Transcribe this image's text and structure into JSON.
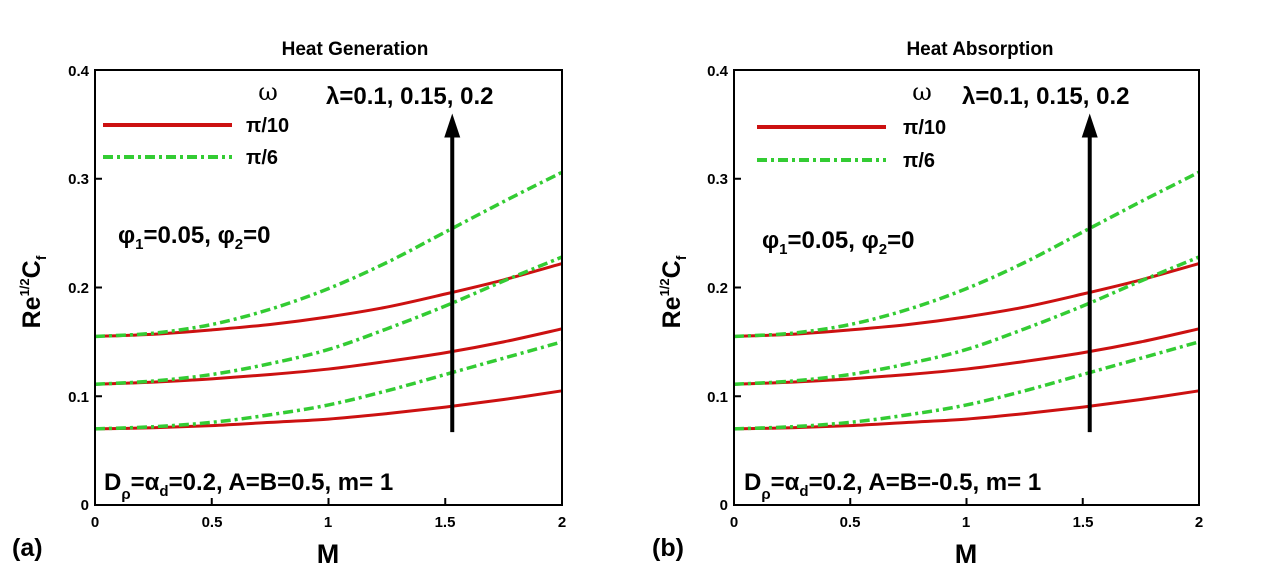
{
  "colors": {
    "solid": "#cc1111",
    "dashdot": "#33cc33",
    "axis": "#000000",
    "arrow": "#000000"
  },
  "chart_data": [
    {
      "type": "line",
      "panel": "(a)",
      "title": "Heat Generation",
      "xlabel": "M",
      "ylabel": {
        "base": "Re",
        "sup": "1/2",
        "main": "C",
        "sub": "f"
      },
      "xlim": [
        0,
        2
      ],
      "ylim": [
        0,
        0.4
      ],
      "xticks": [
        "0",
        "0.5",
        "1",
        "1.5",
        "2"
      ],
      "yticks": [
        "0",
        "0.1",
        "0.2",
        "0.3",
        "0.4"
      ],
      "legend": {
        "header": "ω",
        "entries": [
          {
            "label": "π/10",
            "style": "solid"
          },
          {
            "label": "π/6",
            "style": "dashdot"
          }
        ]
      },
      "annotations": {
        "lambda": "λ=0.1, 0.15, 0.2",
        "phi_p1": "φ",
        "phi_s1": "1",
        "phi_v1": "=0.05, ",
        "phi_p2": "φ",
        "phi_s2": "2",
        "phi_v2": "=0",
        "params_a": "D",
        "params_a_sub": "ρ",
        "params_b": "=",
        "params_c": "α",
        "params_c_sub": "d",
        "params_d": "=0.2, A=B=0.5, m= 1"
      },
      "arrow": {
        "x": 1.53,
        "y_from": 0.067,
        "y_to": 0.36
      },
      "series": [
        {
          "name": "π/10, λ=0.1",
          "style": "solid",
          "x": [
            0,
            0.25,
            0.5,
            0.75,
            1,
            1.25,
            1.5,
            1.75,
            2
          ],
          "y": [
            0.07,
            0.071,
            0.073,
            0.076,
            0.079,
            0.084,
            0.09,
            0.097,
            0.105
          ]
        },
        {
          "name": "π/10, λ=0.15",
          "style": "solid",
          "x": [
            0,
            0.25,
            0.5,
            0.75,
            1,
            1.25,
            1.5,
            1.75,
            2
          ],
          "y": [
            0.111,
            0.113,
            0.116,
            0.12,
            0.125,
            0.132,
            0.14,
            0.15,
            0.162
          ]
        },
        {
          "name": "π/10, λ=0.2",
          "style": "solid",
          "x": [
            0,
            0.25,
            0.5,
            0.75,
            1,
            1.25,
            1.5,
            1.75,
            2
          ],
          "y": [
            0.155,
            0.157,
            0.161,
            0.166,
            0.173,
            0.182,
            0.194,
            0.207,
            0.222
          ]
        },
        {
          "name": "π/6, λ=0.1",
          "style": "dashdot",
          "x": [
            0,
            0.25,
            0.5,
            0.75,
            1,
            1.25,
            1.5,
            1.75,
            2
          ],
          "y": [
            0.07,
            0.072,
            0.076,
            0.083,
            0.092,
            0.105,
            0.12,
            0.135,
            0.15
          ]
        },
        {
          "name": "π/6, λ=0.15",
          "style": "dashdot",
          "x": [
            0,
            0.25,
            0.5,
            0.75,
            1,
            1.25,
            1.5,
            1.75,
            2
          ],
          "y": [
            0.111,
            0.114,
            0.12,
            0.13,
            0.143,
            0.162,
            0.183,
            0.206,
            0.228
          ]
        },
        {
          "name": "π/6, λ=0.2",
          "style": "dashdot",
          "x": [
            0,
            0.25,
            0.5,
            0.75,
            1,
            1.25,
            1.5,
            1.75,
            2
          ],
          "y": [
            0.155,
            0.158,
            0.166,
            0.18,
            0.199,
            0.223,
            0.251,
            0.279,
            0.306
          ]
        }
      ]
    },
    {
      "type": "line",
      "panel": "(b)",
      "title": "Heat Absorption",
      "xlabel": "M",
      "ylabel": {
        "base": "Re",
        "sup": "1/2",
        "main": "C",
        "sub": "f"
      },
      "xlim": [
        0,
        2
      ],
      "ylim": [
        0,
        0.4
      ],
      "xticks": [
        "0",
        "0.5",
        "1",
        "1.5",
        "2"
      ],
      "yticks": [
        "0",
        "0.1",
        "0.2",
        "0.3",
        "0.4"
      ],
      "legend": {
        "header": "ω",
        "entries": [
          {
            "label": "π/10",
            "style": "solid"
          },
          {
            "label": "π/6",
            "style": "dashdot"
          }
        ]
      },
      "annotations": {
        "lambda": "λ=0.1, 0.15, 0.2",
        "phi_p1": "φ",
        "phi_s1": "1",
        "phi_v1": "=0.05, ",
        "phi_p2": "φ",
        "phi_s2": "2",
        "phi_v2": "=0",
        "params_a": "D",
        "params_a_sub": "ρ",
        "params_b": "=",
        "params_c": "α",
        "params_c_sub": "d",
        "params_d": "=0.2, A=B=-0.5, m= 1"
      },
      "arrow": {
        "x": 1.53,
        "y_from": 0.067,
        "y_to": 0.36
      },
      "series": [
        {
          "name": "π/10, λ=0.1",
          "style": "solid",
          "x": [
            0,
            0.25,
            0.5,
            0.75,
            1,
            1.25,
            1.5,
            1.75,
            2
          ],
          "y": [
            0.07,
            0.071,
            0.073,
            0.076,
            0.079,
            0.084,
            0.09,
            0.097,
            0.105
          ]
        },
        {
          "name": "π/10, λ=0.15",
          "style": "solid",
          "x": [
            0,
            0.25,
            0.5,
            0.75,
            1,
            1.25,
            1.5,
            1.75,
            2
          ],
          "y": [
            0.111,
            0.113,
            0.116,
            0.12,
            0.125,
            0.132,
            0.14,
            0.15,
            0.162
          ]
        },
        {
          "name": "π/10, λ=0.2",
          "style": "solid",
          "x": [
            0,
            0.25,
            0.5,
            0.75,
            1,
            1.25,
            1.5,
            1.75,
            2
          ],
          "y": [
            0.155,
            0.157,
            0.161,
            0.166,
            0.173,
            0.182,
            0.194,
            0.207,
            0.222
          ]
        },
        {
          "name": "π/6, λ=0.1",
          "style": "dashdot",
          "x": [
            0,
            0.25,
            0.5,
            0.75,
            1,
            1.25,
            1.5,
            1.75,
            2
          ],
          "y": [
            0.07,
            0.072,
            0.076,
            0.083,
            0.092,
            0.105,
            0.12,
            0.135,
            0.15
          ]
        },
        {
          "name": "π/6, λ=0.15",
          "style": "dashdot",
          "x": [
            0,
            0.25,
            0.5,
            0.75,
            1,
            1.25,
            1.5,
            1.75,
            2
          ],
          "y": [
            0.111,
            0.114,
            0.12,
            0.13,
            0.143,
            0.162,
            0.183,
            0.206,
            0.228
          ]
        },
        {
          "name": "π/6, λ=0.2",
          "style": "dashdot",
          "x": [
            0,
            0.25,
            0.5,
            0.75,
            1,
            1.25,
            1.5,
            1.75,
            2
          ],
          "y": [
            0.155,
            0.158,
            0.166,
            0.18,
            0.199,
            0.223,
            0.251,
            0.279,
            0.306
          ]
        }
      ]
    }
  ]
}
